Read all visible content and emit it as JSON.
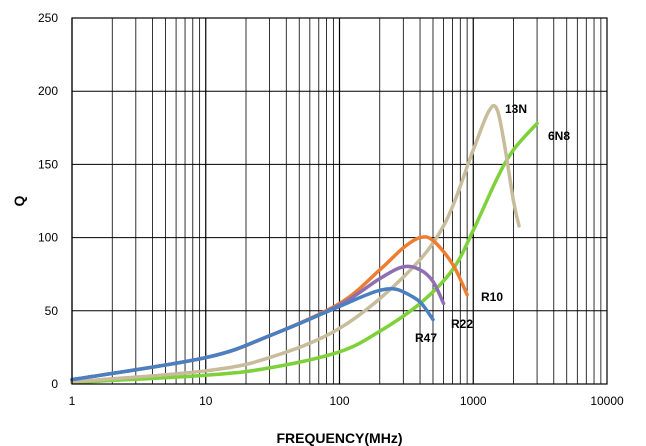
{
  "chart_data": {
    "type": "line",
    "title": "",
    "xlabel": "FREQUENCY(MHz)",
    "ylabel": "Q",
    "xscale": "log",
    "xlim": [
      1,
      10000
    ],
    "ylim": [
      0,
      250
    ],
    "grid": true,
    "legend": "none",
    "x_tick_labels": [
      "1",
      "10",
      "100",
      "1000",
      "10000"
    ],
    "y_tick_labels": [
      "0",
      "50",
      "100",
      "150",
      "200",
      "250"
    ],
    "series": [
      {
        "name": "6N8",
        "color": "#7fd13b",
        "x": [
          1,
          10,
          30,
          100,
          200,
          400,
          700,
          1000,
          1500,
          2000,
          3000
        ],
        "y": [
          1,
          6,
          11,
          22,
          36,
          55,
          78,
          105,
          140,
          160,
          178
        ]
      },
      {
        "name": "13N",
        "color": "#c8bc9c",
        "x": [
          1,
          10,
          30,
          100,
          300,
          600,
          1000,
          1300,
          1500,
          1700,
          2000,
          2200
        ],
        "y": [
          1.5,
          9,
          18,
          38,
          73,
          108,
          160,
          186,
          188,
          165,
          125,
          108
        ]
      },
      {
        "name": "R10",
        "color": "#ed7d31",
        "x": [
          1,
          10,
          30,
          100,
          200,
          300,
          400,
          500,
          700,
          900
        ],
        "y": [
          3,
          18,
          33,
          55,
          78,
          93,
          100,
          98,
          82,
          61
        ]
      },
      {
        "name": "R22",
        "color": "#8e6fb4",
        "x": [
          1,
          10,
          30,
          100,
          200,
          300,
          400,
          500,
          600
        ],
        "y": [
          3,
          18,
          33,
          54,
          72,
          80,
          78,
          70,
          55
        ]
      },
      {
        "name": "R47",
        "color": "#4a7fc1",
        "x": [
          1,
          10,
          30,
          100,
          150,
          200,
          250,
          300,
          400,
          500
        ],
        "y": [
          3,
          18,
          33,
          53,
          60,
          64,
          65,
          63,
          56,
          44
        ]
      }
    ]
  }
}
